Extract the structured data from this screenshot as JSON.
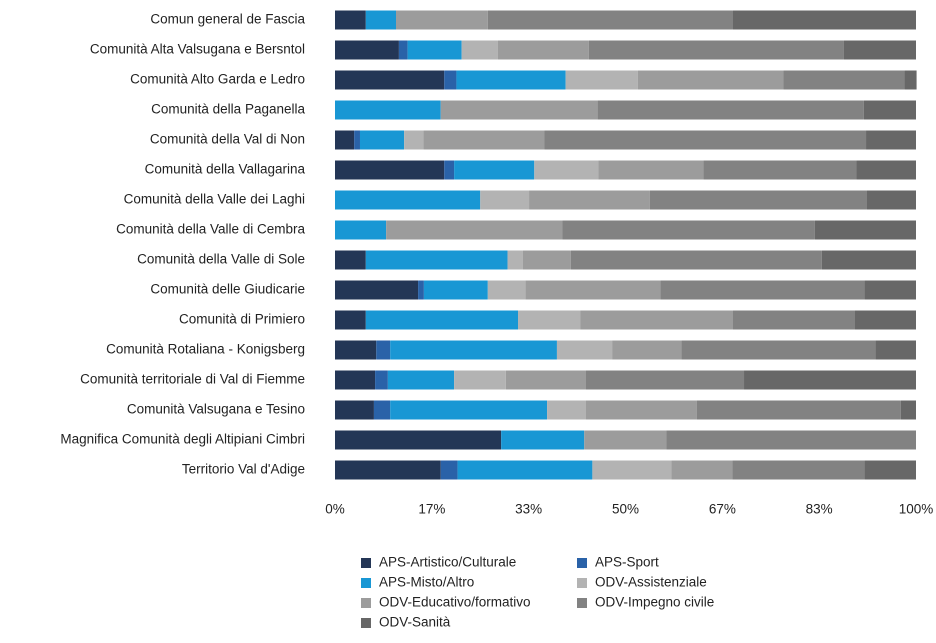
{
  "chart_data": {
    "type": "stacked-bar-horizontal",
    "categories": [
      "Comun general de Fascia",
      "Comunità Alta Valsugana e Bersntol",
      "Comunità Alto Garda e Ledro",
      "Comunità della Paganella",
      "Comunità della Val di Non",
      "Comunità della Vallagarina",
      "Comunità della Valle dei Laghi",
      "Comunità della Valle di Cembra",
      "Comunità della Valle di Sole",
      "Comunità delle Giudicarie",
      "Comunità di Primiero",
      "Comunità Rotaliana - Konigsberg",
      "Comunità territoriale di Val di Fiemme",
      "Comunità Valsugana e Tesino",
      "Magnifica Comunità degli Altipiani Cimbri",
      "Territorio Val d'Adige"
    ],
    "series": [
      {
        "name": "APS-Artistico/Culturale",
        "color": "#243656",
        "values": [
          5.3,
          11.0,
          18.8,
          0,
          3.3,
          18.8,
          0,
          0,
          5.3,
          14.3,
          5.3,
          7.1,
          6.9,
          6.7,
          28.6,
          18.2
        ]
      },
      {
        "name": "APS-Sport",
        "color": "#2a62a8",
        "values": [
          0,
          1.5,
          2.1,
          0,
          1.0,
          1.7,
          0,
          0,
          0,
          1.0,
          0,
          2.4,
          2.2,
          2.8,
          0,
          2.9
        ]
      },
      {
        "name": "APS-Misto/Altro",
        "color": "#1997d4",
        "values": [
          5.2,
          9.3,
          18.8,
          18.2,
          7.6,
          13.8,
          25.0,
          8.8,
          24.4,
          11.0,
          26.2,
          28.7,
          11.4,
          27.0,
          14.3,
          23.2
        ]
      },
      {
        "name": "ODV-Assistenziale",
        "color": "#b3b3b3",
        "values": [
          0,
          6.2,
          12.4,
          0,
          3.3,
          11.0,
          8.4,
          0,
          2.6,
          6.5,
          10.7,
          9.5,
          8.9,
          6.7,
          0,
          13.6
        ]
      },
      {
        "name": "ODV-Educativo/formativo",
        "color": "#9c9c9c",
        "values": [
          15.8,
          15.7,
          25.1,
          27.0,
          20.8,
          18.1,
          20.8,
          30.3,
          8.3,
          23.2,
          26.3,
          11.9,
          13.8,
          19.1,
          14.1,
          10.5
        ]
      },
      {
        "name": "ODV-Impegno civile",
        "color": "#828282",
        "values": [
          42.2,
          43.9,
          20.8,
          45.8,
          55.4,
          26.3,
          37.3,
          43.5,
          43.2,
          35.1,
          21.0,
          33.4,
          27.2,
          35.1,
          43.0,
          22.7
        ]
      },
      {
        "name": "ODV-Sanità",
        "color": "#676767",
        "values": [
          31.5,
          12.4,
          2.1,
          9.0,
          8.6,
          10.3,
          8.5,
          17.4,
          16.2,
          8.9,
          10.5,
          7.0,
          29.6,
          2.6,
          0,
          8.9
        ]
      }
    ],
    "xlim": [
      0,
      100
    ],
    "xticks": [
      {
        "value": 0,
        "label": "0%"
      },
      {
        "value": 16.67,
        "label": "17%"
      },
      {
        "value": 33.33,
        "label": "33%"
      },
      {
        "value": 50,
        "label": "50%"
      },
      {
        "value": 66.67,
        "label": "67%"
      },
      {
        "value": 83.33,
        "label": "83%"
      },
      {
        "value": 100,
        "label": "100%"
      }
    ],
    "grid": false
  }
}
